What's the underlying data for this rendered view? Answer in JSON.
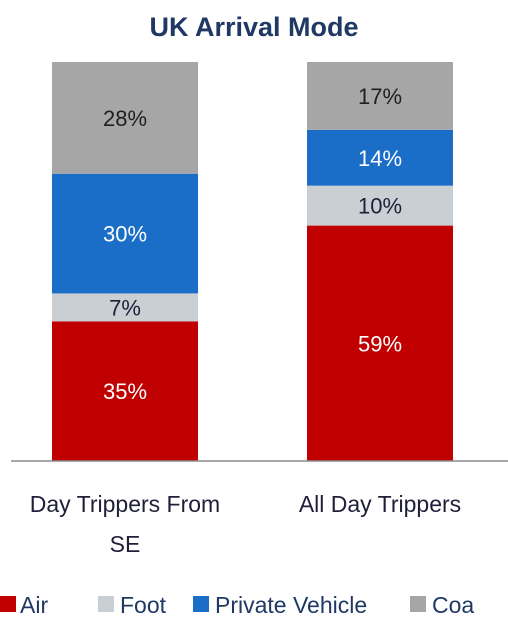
{
  "chart_data": {
    "type": "bar",
    "stacked": true,
    "title": "UK Arrival Mode",
    "categories": [
      "Day Trippers From SE",
      "All Day Trippers"
    ],
    "category_lines": [
      [
        "Day Trippers From",
        "SE"
      ],
      [
        "All Day Trippers"
      ]
    ],
    "series": [
      {
        "name": "Air",
        "values": [
          35,
          59
        ],
        "labels": [
          "35%",
          "59%"
        ],
        "color": "#c00000",
        "label_color": "#ffffff"
      },
      {
        "name": "Foot",
        "values": [
          7,
          10
        ],
        "labels": [
          "7%",
          "10%"
        ],
        "color": "#c9cfd2",
        "label_color": "#1f1f3a"
      },
      {
        "name": "Private Vehicle",
        "values": [
          30,
          14
        ],
        "labels": [
          "30%",
          "14%"
        ],
        "color": "#1a6ec7",
        "label_color": "#ffffff"
      },
      {
        "name": "Coach",
        "values": [
          28,
          17
        ],
        "labels": [
          "28%",
          "17%"
        ],
        "color": "#a6a6a6",
        "label_color": "#1f1f1f"
      }
    ],
    "legend_visible": [
      "Air",
      "Foot",
      "Private Vehicle",
      "Coa"
    ],
    "ylim": [
      0,
      100
    ],
    "legend_position": "bottom",
    "grid": false
  }
}
